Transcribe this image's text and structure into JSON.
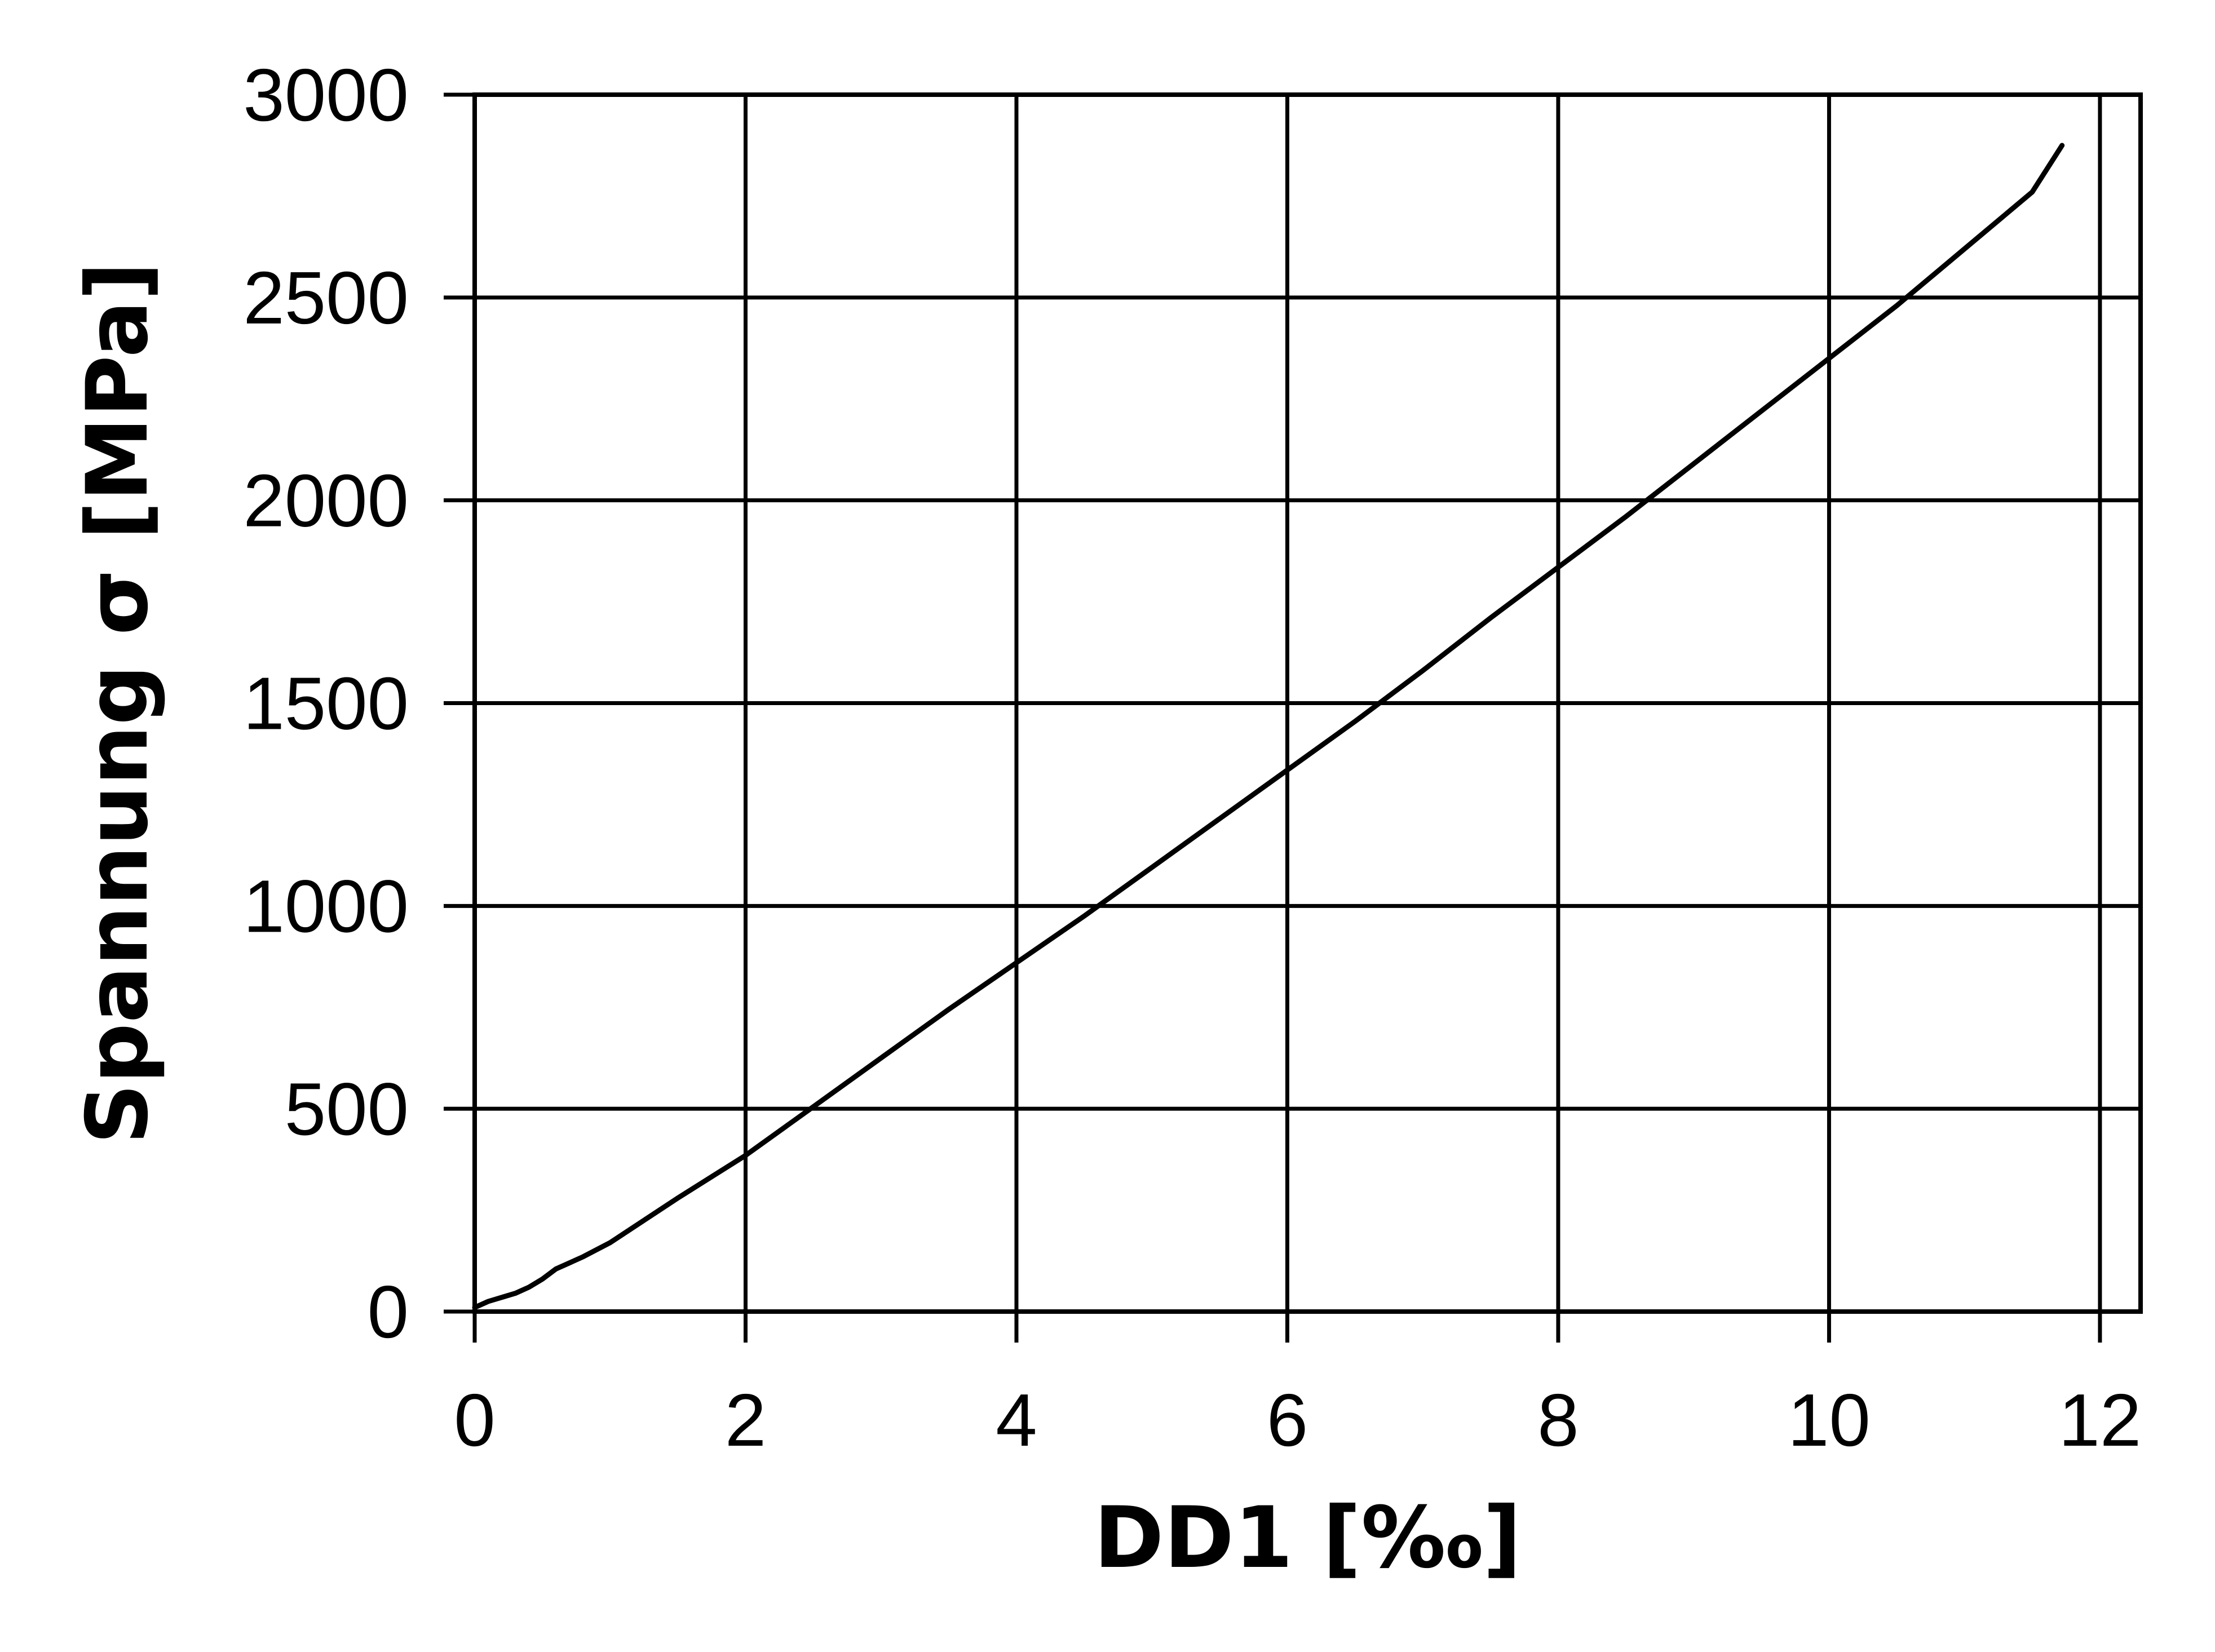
{
  "chart_data": {
    "type": "line",
    "title": "",
    "xlabel": "DD1 [‰]",
    "ylabel": "Spannung σ [MPa]",
    "xlim": [
      0,
      12.3
    ],
    "ylim": [
      0,
      3000
    ],
    "xticks": [
      0,
      2,
      4,
      6,
      8,
      10,
      12
    ],
    "yticks": [
      0,
      500,
      1000,
      1500,
      2000,
      2500,
      3000
    ],
    "xtick_labels": [
      "0",
      "2",
      "4",
      "6",
      "8",
      "10",
      "12"
    ],
    "ytick_labels": [
      "0",
      "500",
      "1000",
      "1500",
      "2000",
      "2500",
      "3000"
    ],
    "grid": true,
    "series": [
      {
        "color": "#000000",
        "x": [
          0.0,
          0.1,
          0.2,
          0.3,
          0.4,
          0.5,
          0.6,
          0.7,
          0.8,
          1.0,
          1.5,
          2.0,
          2.5,
          3.0,
          3.5,
          4.0,
          4.5,
          5.0,
          5.5,
          6.0,
          6.5,
          7.0,
          7.5,
          8.0,
          8.5,
          9.0,
          9.5,
          10.0,
          10.5,
          11.0,
          11.5,
          11.72
        ],
        "y": [
          10,
          25,
          35,
          45,
          60,
          80,
          105,
          120,
          135,
          170,
          280,
          385,
          505,
          625,
          745,
          860,
          975,
          1095,
          1215,
          1335,
          1455,
          1580,
          1710,
          1835,
          1960,
          2090,
          2220,
          2350,
          2480,
          2620,
          2760,
          2875
        ]
      }
    ]
  }
}
